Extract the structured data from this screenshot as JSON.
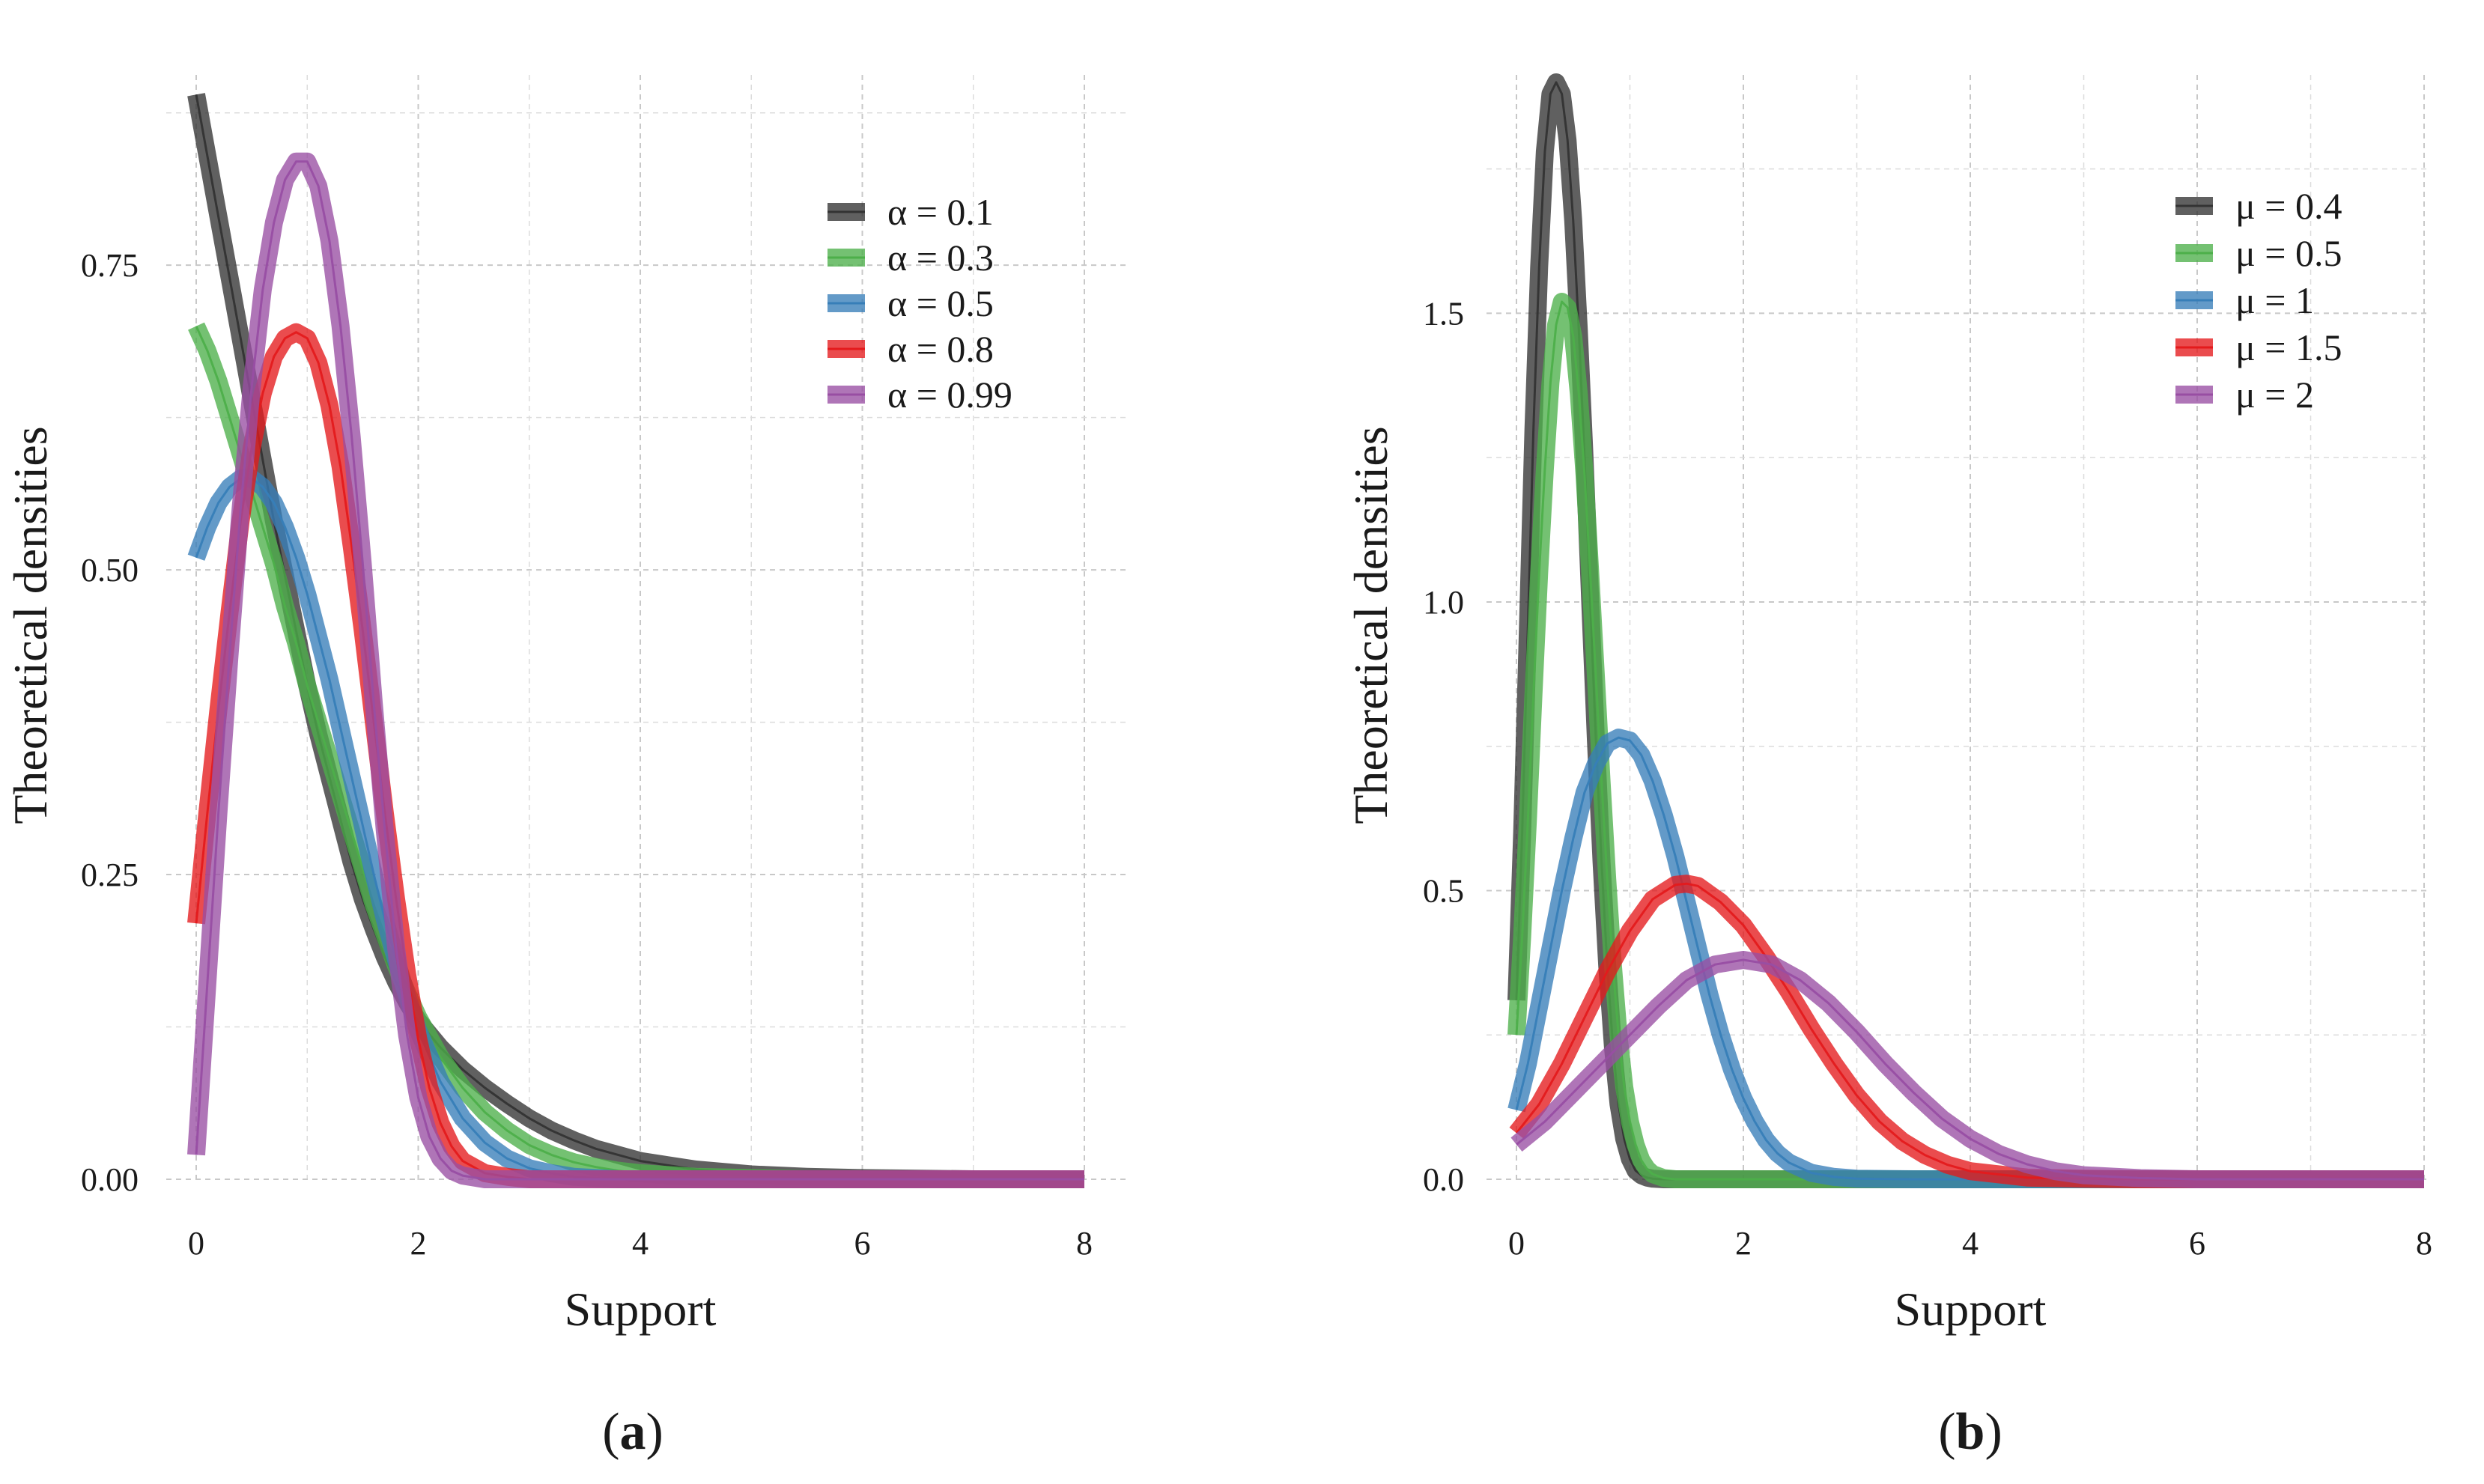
{
  "chart_data": [
    {
      "type": "line",
      "panel": "a",
      "caption_letter": "a",
      "xlabel": "Support",
      "ylabel": "Theoretical densities",
      "xlim": [
        0,
        8
      ],
      "ylim": [
        0,
        0.9
      ],
      "x_ticks": [
        "0",
        "2",
        "4",
        "6",
        "8"
      ],
      "y_ticks": [
        "0.00",
        "0.25",
        "0.50",
        "0.75"
      ],
      "legend_position": "top-right",
      "series": [
        {
          "name": "α = 0.1",
          "color": "#333333",
          "x": [
            0,
            0.1,
            0.2,
            0.3,
            0.4,
            0.5,
            0.6,
            0.7,
            0.8,
            0.9,
            1.0,
            1.1,
            1.2,
            1.3,
            1.4,
            1.5,
            1.6,
            1.7,
            1.8,
            1.9,
            2.0,
            2.2,
            2.4,
            2.6,
            2.8,
            3.0,
            3.2,
            3.4,
            3.6,
            3.8,
            4.0,
            4.5,
            5.0,
            5.5,
            6.0,
            7.0,
            8.0
          ],
          "values": [
            0.89,
            0.84,
            0.79,
            0.74,
            0.69,
            0.64,
            0.59,
            0.54,
            0.495,
            0.45,
            0.405,
            0.365,
            0.33,
            0.295,
            0.26,
            0.23,
            0.205,
            0.182,
            0.162,
            0.145,
            0.13,
            0.108,
            0.09,
            0.075,
            0.062,
            0.05,
            0.04,
            0.032,
            0.025,
            0.02,
            0.015,
            0.008,
            0.004,
            0.002,
            0.001,
            0.0,
            0.0
          ]
        },
        {
          "name": "α = 0.3",
          "color": "#4daf4a",
          "x": [
            0,
            0.1,
            0.2,
            0.3,
            0.4,
            0.5,
            0.6,
            0.7,
            0.8,
            0.9,
            1.0,
            1.1,
            1.2,
            1.3,
            1.4,
            1.5,
            1.6,
            1.7,
            1.8,
            1.9,
            2.0,
            2.2,
            2.4,
            2.6,
            2.8,
            3.0,
            3.2,
            3.4,
            3.6,
            3.8,
            4.0,
            4.5,
            5.0,
            5.5,
            6.0,
            7.0,
            8.0
          ],
          "values": [
            0.7,
            0.68,
            0.655,
            0.625,
            0.595,
            0.565,
            0.535,
            0.505,
            0.47,
            0.44,
            0.405,
            0.375,
            0.345,
            0.315,
            0.285,
            0.255,
            0.225,
            0.2,
            0.175,
            0.153,
            0.133,
            0.1,
            0.075,
            0.055,
            0.04,
            0.028,
            0.02,
            0.014,
            0.01,
            0.007,
            0.005,
            0.002,
            0.001,
            0.0,
            0.0,
            0.0,
            0.0
          ]
        },
        {
          "name": "α = 0.5",
          "color": "#377eb8",
          "x": [
            0,
            0.1,
            0.2,
            0.3,
            0.4,
            0.5,
            0.6,
            0.7,
            0.8,
            0.9,
            1.0,
            1.1,
            1.2,
            1.3,
            1.4,
            1.5,
            1.6,
            1.7,
            1.8,
            1.9,
            2.0,
            2.2,
            2.4,
            2.6,
            2.8,
            3.0,
            3.2,
            3.4,
            3.6,
            3.8,
            4.0,
            4.5,
            5.0,
            5.5,
            6.0,
            7.0,
            8.0
          ],
          "values": [
            0.51,
            0.535,
            0.555,
            0.568,
            0.575,
            0.575,
            0.568,
            0.555,
            0.535,
            0.51,
            0.48,
            0.445,
            0.41,
            0.37,
            0.33,
            0.29,
            0.25,
            0.213,
            0.18,
            0.15,
            0.122,
            0.08,
            0.05,
            0.03,
            0.017,
            0.009,
            0.005,
            0.002,
            0.001,
            0.0,
            0.0,
            0.0,
            0.0,
            0.0,
            0.0,
            0.0,
            0.0
          ]
        },
        {
          "name": "α = 0.8",
          "color": "#e41a1c",
          "x": [
            0,
            0.1,
            0.2,
            0.3,
            0.4,
            0.5,
            0.6,
            0.7,
            0.8,
            0.9,
            1.0,
            1.1,
            1.2,
            1.3,
            1.4,
            1.5,
            1.6,
            1.7,
            1.8,
            1.9,
            2.0,
            2.1,
            2.2,
            2.3,
            2.4,
            2.6,
            2.8,
            3.0,
            3.5,
            4.0,
            5.0,
            6.0,
            7.0,
            8.0
          ],
          "values": [
            0.21,
            0.3,
            0.385,
            0.465,
            0.54,
            0.6,
            0.645,
            0.675,
            0.69,
            0.695,
            0.69,
            0.67,
            0.635,
            0.585,
            0.52,
            0.45,
            0.375,
            0.3,
            0.23,
            0.168,
            0.115,
            0.075,
            0.046,
            0.027,
            0.015,
            0.005,
            0.002,
            0.0,
            0.0,
            0.0,
            0.0,
            0.0,
            0.0,
            0.0
          ]
        },
        {
          "name": "α = 0.99",
          "color": "#984ea3",
          "x": [
            0,
            0.1,
            0.2,
            0.3,
            0.4,
            0.5,
            0.6,
            0.7,
            0.8,
            0.9,
            1.0,
            1.1,
            1.2,
            1.3,
            1.4,
            1.5,
            1.6,
            1.7,
            1.8,
            1.9,
            2.0,
            2.1,
            2.2,
            2.3,
            2.4,
            2.6,
            2.8,
            3.0,
            3.5,
            4.0,
            5.0,
            6.0,
            7.0,
            8.0
          ],
          "values": [
            0.02,
            0.16,
            0.3,
            0.43,
            0.55,
            0.65,
            0.73,
            0.785,
            0.82,
            0.835,
            0.835,
            0.815,
            0.77,
            0.7,
            0.61,
            0.505,
            0.39,
            0.285,
            0.19,
            0.118,
            0.067,
            0.035,
            0.017,
            0.007,
            0.003,
            0.0,
            0.0,
            0.0,
            0.0,
            0.0,
            0.0,
            0.0,
            0.0,
            0.0
          ]
        }
      ]
    },
    {
      "type": "line",
      "panel": "b",
      "caption_letter": "b",
      "xlabel": "Support",
      "ylabel": "Theoretical densities",
      "xlim": [
        0,
        8
      ],
      "ylim": [
        0,
        1.9
      ],
      "x_ticks": [
        "0",
        "2",
        "4",
        "6",
        "8"
      ],
      "y_ticks": [
        "0.0",
        "0.5",
        "1.0",
        "1.5"
      ],
      "legend_position": "top-right",
      "series": [
        {
          "name": "μ = 0.4",
          "color": "#333333",
          "x": [
            0,
            0.05,
            0.1,
            0.15,
            0.2,
            0.25,
            0.3,
            0.35,
            0.4,
            0.45,
            0.5,
            0.55,
            0.6,
            0.65,
            0.7,
            0.75,
            0.8,
            0.85,
            0.9,
            0.95,
            1.0,
            1.05,
            1.1,
            1.15,
            1.2,
            1.3,
            1.5,
            2.0,
            3.0,
            4.0,
            5.0,
            6.0,
            7.0,
            8.0
          ],
          "values": [
            0.31,
            0.6,
            0.95,
            1.3,
            1.58,
            1.78,
            1.88,
            1.9,
            1.88,
            1.8,
            1.66,
            1.47,
            1.25,
            1.0,
            0.76,
            0.55,
            0.37,
            0.23,
            0.13,
            0.07,
            0.035,
            0.015,
            0.007,
            0.003,
            0.001,
            0.0,
            0.0,
            0.0,
            0.0,
            0.0,
            0.0,
            0.0,
            0.0,
            0.0
          ]
        },
        {
          "name": "μ = 0.5",
          "color": "#4daf4a",
          "x": [
            0,
            0.05,
            0.1,
            0.15,
            0.2,
            0.25,
            0.3,
            0.35,
            0.4,
            0.45,
            0.5,
            0.55,
            0.6,
            0.65,
            0.7,
            0.75,
            0.8,
            0.85,
            0.9,
            0.95,
            1.0,
            1.05,
            1.1,
            1.15,
            1.2,
            1.3,
            1.4,
            1.5,
            2.0,
            3.0,
            4.0,
            5.0,
            6.0,
            7.0,
            8.0
          ],
          "values": [
            0.25,
            0.42,
            0.62,
            0.84,
            1.05,
            1.23,
            1.38,
            1.48,
            1.52,
            1.51,
            1.46,
            1.36,
            1.22,
            1.05,
            0.87,
            0.69,
            0.52,
            0.37,
            0.25,
            0.16,
            0.1,
            0.06,
            0.033,
            0.018,
            0.009,
            0.002,
            0.0,
            0.0,
            0.0,
            0.0,
            0.0,
            0.0,
            0.0,
            0.0,
            0.0
          ]
        },
        {
          "name": "μ = 1",
          "color": "#377eb8",
          "x": [
            0,
            0.1,
            0.2,
            0.3,
            0.4,
            0.5,
            0.6,
            0.7,
            0.8,
            0.9,
            1.0,
            1.1,
            1.2,
            1.3,
            1.4,
            1.5,
            1.6,
            1.7,
            1.8,
            1.9,
            2.0,
            2.1,
            2.2,
            2.3,
            2.4,
            2.6,
            2.8,
            3.0,
            3.5,
            4.0,
            5.0,
            6.0,
            7.0,
            8.0
          ],
          "values": [
            0.12,
            0.2,
            0.3,
            0.4,
            0.5,
            0.59,
            0.67,
            0.72,
            0.755,
            0.765,
            0.76,
            0.735,
            0.69,
            0.63,
            0.56,
            0.48,
            0.4,
            0.32,
            0.25,
            0.19,
            0.14,
            0.1,
            0.068,
            0.045,
            0.029,
            0.011,
            0.004,
            0.001,
            0.0,
            0.0,
            0.0,
            0.0,
            0.0,
            0.0
          ]
        },
        {
          "name": "μ = 1.5",
          "color": "#e41a1c",
          "x": [
            0,
            0.2,
            0.4,
            0.6,
            0.8,
            1.0,
            1.2,
            1.4,
            1.5,
            1.6,
            1.8,
            2.0,
            2.2,
            2.4,
            2.6,
            2.8,
            3.0,
            3.2,
            3.4,
            3.6,
            3.8,
            4.0,
            4.5,
            5.0,
            5.5,
            6.0,
            7.0,
            8.0
          ],
          "values": [
            0.08,
            0.13,
            0.2,
            0.28,
            0.36,
            0.43,
            0.485,
            0.51,
            0.512,
            0.508,
            0.48,
            0.44,
            0.385,
            0.325,
            0.26,
            0.2,
            0.145,
            0.1,
            0.066,
            0.042,
            0.025,
            0.014,
            0.003,
            0.001,
            0.0,
            0.0,
            0.0,
            0.0
          ]
        },
        {
          "name": "μ = 2",
          "color": "#984ea3",
          "x": [
            0,
            0.25,
            0.5,
            0.75,
            1.0,
            1.25,
            1.5,
            1.75,
            2.0,
            2.25,
            2.5,
            2.75,
            3.0,
            3.25,
            3.5,
            3.75,
            4.0,
            4.25,
            4.5,
            4.75,
            5.0,
            5.5,
            6.0,
            6.5,
            7.0,
            8.0
          ],
          "values": [
            0.06,
            0.1,
            0.15,
            0.2,
            0.25,
            0.3,
            0.345,
            0.372,
            0.38,
            0.372,
            0.345,
            0.305,
            0.255,
            0.2,
            0.15,
            0.105,
            0.07,
            0.044,
            0.026,
            0.014,
            0.007,
            0.002,
            0.0,
            0.0,
            0.0,
            0.0
          ]
        }
      ]
    }
  ]
}
